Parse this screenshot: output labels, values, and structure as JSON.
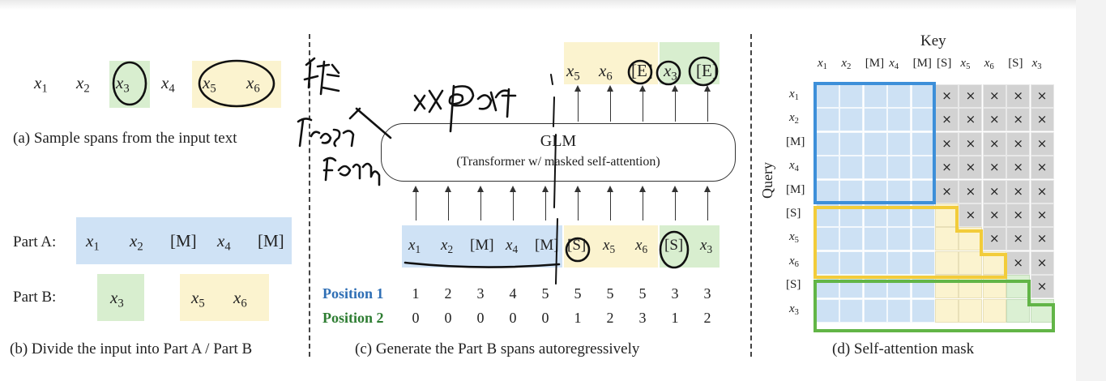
{
  "panel_a": {
    "tokens": [
      {
        "base": "x",
        "sub": "1",
        "style": "plain"
      },
      {
        "base": "x",
        "sub": "2",
        "style": "plain"
      },
      {
        "base": "x",
        "sub": "3",
        "style": "green"
      },
      {
        "base": "x",
        "sub": "4",
        "style": "plain"
      },
      {
        "base": "x",
        "sub": "5",
        "style": "yellow"
      },
      {
        "base": "x",
        "sub": "6",
        "style": "yellow"
      }
    ],
    "caption": "(a)  Sample spans from the input text"
  },
  "panel_b": {
    "part_a_label": "Part A:",
    "part_a_tokens": [
      {
        "base": "x",
        "sub": "1"
      },
      {
        "base": "x",
        "sub": "2"
      },
      {
        "base": "[M]",
        "sub": ""
      },
      {
        "base": "x",
        "sub": "4"
      },
      {
        "base": "[M]",
        "sub": ""
      }
    ],
    "part_b_label": "Part B:",
    "part_b_green": [
      {
        "base": "x",
        "sub": "3"
      }
    ],
    "part_b_yellow": [
      {
        "base": "x",
        "sub": "5"
      },
      {
        "base": "x",
        "sub": "6"
      }
    ],
    "caption": "(b)  Divide the input into Part A / Part B"
  },
  "panel_c": {
    "model_title": "GLM",
    "model_subtitle": "(Transformer w/ masked self-attention)",
    "outputs": [
      {
        "base": "x",
        "sub": "5"
      },
      {
        "base": "x",
        "sub": "6"
      },
      {
        "base": "[E]",
        "sub": ""
      },
      {
        "base": "x",
        "sub": "3"
      },
      {
        "base": "[E]",
        "sub": ""
      }
    ],
    "inputs": [
      {
        "base": "x",
        "sub": "1"
      },
      {
        "base": "x",
        "sub": "2"
      },
      {
        "base": "[M]",
        "sub": ""
      },
      {
        "base": "x",
        "sub": "4"
      },
      {
        "base": "[M]",
        "sub": ""
      },
      {
        "base": "[S]",
        "sub": ""
      },
      {
        "base": "x",
        "sub": "5"
      },
      {
        "base": "x",
        "sub": "6"
      },
      {
        "base": "[S]",
        "sub": ""
      },
      {
        "base": "x",
        "sub": "3"
      }
    ],
    "position1_label": "Position 1",
    "position2_label": "Position 2",
    "position1": [
      "1",
      "2",
      "3",
      "4",
      "5",
      "5",
      "5",
      "5",
      "3",
      "3"
    ],
    "position2": [
      "0",
      "0",
      "0",
      "0",
      "0",
      "1",
      "2",
      "3",
      "1",
      "2"
    ],
    "caption": "(c)  Generate the Part B spans autoregressively",
    "colors": {
      "position1": "#2f6fb5",
      "position2": "#2e7d32"
    }
  },
  "panel_d": {
    "key_label": "Key",
    "query_label": "Query",
    "key_tokens": [
      {
        "base": "x",
        "sub": "1"
      },
      {
        "base": "x",
        "sub": "2"
      },
      {
        "base": "[M]",
        "sub": ""
      },
      {
        "base": "x",
        "sub": "4"
      },
      {
        "base": "[M]",
        "sub": ""
      },
      {
        "base": "[S]",
        "sub": ""
      },
      {
        "base": "x",
        "sub": "5"
      },
      {
        "base": "x",
        "sub": "6"
      },
      {
        "base": "[S]",
        "sub": ""
      },
      {
        "base": "x",
        "sub": "3"
      }
    ],
    "query_tokens": [
      {
        "base": "x",
        "sub": "1"
      },
      {
        "base": "x",
        "sub": "2"
      },
      {
        "base": "[M]",
        "sub": ""
      },
      {
        "base": "x",
        "sub": "4"
      },
      {
        "base": "[M]",
        "sub": ""
      },
      {
        "base": "[S]",
        "sub": ""
      },
      {
        "base": "x",
        "sub": "5"
      },
      {
        "base": "x",
        "sub": "6"
      },
      {
        "base": "[S]",
        "sub": ""
      },
      {
        "base": "x",
        "sub": "3"
      }
    ],
    "mask_symbol": "×",
    "caption": "(d)  Self-attention mask",
    "colors": {
      "blue": "#3d8fd9",
      "yellow": "#f2cc3a",
      "green": "#62b547",
      "masked": "#d2d2d2"
    }
  },
  "handwriting": {
    "color": "#111111"
  }
}
